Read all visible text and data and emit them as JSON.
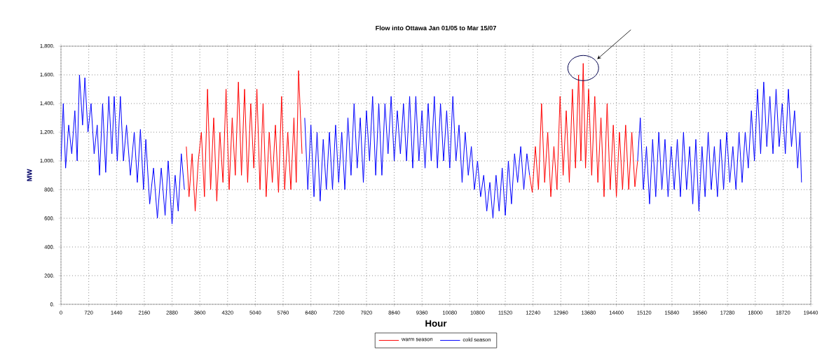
{
  "chart_data": {
    "type": "line",
    "title": "Flow into Ottawa Jan 01/05 to Mar 15/07",
    "xlabel": "Hour",
    "ylabel": "MW",
    "xlim": [
      0,
      19440
    ],
    "ylim": [
      0,
      1800
    ],
    "xticks": [
      0,
      720,
      1440,
      2160,
      2880,
      3600,
      4320,
      5040,
      5760,
      6480,
      7200,
      7920,
      8640,
      9360,
      10080,
      10800,
      11520,
      12240,
      12960,
      13680,
      14400,
      15120,
      15840,
      16560,
      17280,
      18000,
      18720,
      19440
    ],
    "yticks": [
      {
        "value": 0,
        "label": "0."
      },
      {
        "value": 200,
        "label": "200."
      },
      {
        "value": 400,
        "label": "400."
      },
      {
        "value": 600,
        "label": "600."
      },
      {
        "value": 800,
        "label": "800."
      },
      {
        "value": 1000,
        "label": "1,000."
      },
      {
        "value": 1200,
        "label": "1,200."
      },
      {
        "value": 1400,
        "label": "1,400."
      },
      {
        "value": 1600,
        "label": "1,600."
      },
      {
        "value": 1800,
        "label": "1,800."
      }
    ],
    "grid": true,
    "legend": "bottom",
    "marker": "none",
    "line_style": "solid",
    "series": [
      {
        "name": "warm season",
        "color": "#ff0000",
        "x": [
          3250,
          3320,
          3400,
          3480,
          3560,
          3640,
          3720,
          3800,
          3880,
          3960,
          4040,
          4120,
          4200,
          4280,
          4360,
          4440,
          4520,
          4600,
          4680,
          4760,
          4840,
          4920,
          5000,
          5080,
          5160,
          5240,
          5320,
          5400,
          5480,
          5560,
          5640,
          5720,
          5800,
          5880,
          5960,
          6040,
          6100,
          6160,
          6250,
          6300,
          12150,
          12220,
          12300,
          12380,
          12460,
          12540,
          12620,
          12700,
          12780,
          12860,
          12940,
          13020,
          13100,
          13180,
          13260,
          13340,
          13420,
          13480,
          13540,
          13600,
          13680,
          13760,
          13840,
          13920,
          14000,
          14080,
          14160,
          14240,
          14320,
          14400,
          14480,
          14560,
          14640,
          14720,
          14800,
          14880,
          14950
        ],
        "values": [
          1100,
          750,
          1050,
          650,
          1000,
          1200,
          750,
          1500,
          800,
          1300,
          720,
          1200,
          850,
          1500,
          800,
          1300,
          900,
          1550,
          900,
          1500,
          850,
          1400,
          950,
          1500,
          800,
          1400,
          750,
          1200,
          850,
          1250,
          780,
          1450,
          800,
          1200,
          800,
          1300,
          850,
          1630,
          1050,
          null,
          900,
          780,
          1100,
          800,
          1400,
          850,
          1200,
          750,
          1100,
          800,
          1450,
          900,
          1350,
          850,
          1500,
          950,
          1600,
          1000,
          1680,
          950,
          1500,
          900,
          1450,
          850,
          1300,
          750,
          1400,
          800,
          1250,
          750,
          1200,
          800,
          1250,
          800,
          1200,
          820,
          1000
        ]
      },
      {
        "name": "cold season",
        "color": "#0000ff",
        "x": [
          0,
          60,
          120,
          200,
          280,
          360,
          420,
          480,
          560,
          620,
          700,
          780,
          860,
          940,
          1000,
          1080,
          1160,
          1240,
          1320,
          1380,
          1460,
          1540,
          1620,
          1700,
          1800,
          1900,
          1980,
          2060,
          2140,
          2200,
          2300,
          2400,
          2500,
          2600,
          2700,
          2780,
          2880,
          2960,
          3040,
          3120,
          3200,
          3300,
          6320,
          6400,
          6480,
          6560,
          6640,
          6720,
          6800,
          6880,
          6960,
          7040,
          7120,
          7200,
          7280,
          7360,
          7440,
          7520,
          7600,
          7680,
          7760,
          7840,
          7920,
          8000,
          8080,
          8160,
          8240,
          8320,
          8400,
          8480,
          8560,
          8640,
          8720,
          8800,
          8880,
          8960,
          9040,
          9120,
          9200,
          9280,
          9360,
          9440,
          9520,
          9600,
          9680,
          9760,
          9840,
          9920,
          10000,
          10080,
          10160,
          10240,
          10320,
          10400,
          10480,
          10560,
          10640,
          10720,
          10800,
          10880,
          10960,
          11040,
          11120,
          11200,
          11280,
          11360,
          11440,
          11520,
          11600,
          11680,
          11760,
          11840,
          11920,
          12000,
          12080,
          12150,
          12200,
          14950,
          15020,
          15100,
          15180,
          15260,
          15340,
          15420,
          15500,
          15580,
          15660,
          15740,
          15820,
          15900,
          15980,
          16060,
          16140,
          16220,
          16300,
          16380,
          16460,
          16540,
          16620,
          16700,
          16780,
          16860,
          16940,
          17020,
          17100,
          17180,
          17260,
          17340,
          17420,
          17500,
          17580,
          17660,
          17740,
          17820,
          17900,
          17980,
          18060,
          18140,
          18220,
          18300,
          18380,
          18460,
          18540,
          18620,
          18700,
          18780,
          18860,
          18940,
          19020,
          19100,
          19160,
          19200
        ],
        "values": [
          1000,
          1400,
          950,
          1250,
          1050,
          1350,
          1000,
          1600,
          1250,
          1580,
          1200,
          1400,
          1050,
          1250,
          900,
          1400,
          920,
          1450,
          1050,
          1450,
          1000,
          1450,
          1000,
          1250,
          900,
          1200,
          850,
          1220,
          800,
          1150,
          700,
          950,
          600,
          950,
          620,
          1000,
          560,
          900,
          650,
          1050,
          800,
          null,
          1300,
          800,
          1250,
          750,
          1200,
          720,
          1150,
          800,
          1200,
          800,
          1250,
          850,
          1200,
          800,
          1300,
          900,
          1400,
          950,
          1300,
          850,
          1350,
          1000,
          1450,
          900,
          1400,
          900,
          1400,
          1050,
          1450,
          1000,
          1350,
          1050,
          1400,
          1000,
          1450,
          950,
          1450,
          1000,
          1350,
          950,
          1400,
          1000,
          1450,
          950,
          1400,
          1000,
          1350,
          950,
          1450,
          1000,
          1250,
          850,
          1200,
          900,
          1100,
          800,
          1000,
          750,
          900,
          650,
          850,
          600,
          900,
          650,
          950,
          620,
          1000,
          700,
          1050,
          850,
          1100,
          800,
          1050,
          900,
          null,
          1000,
          1300,
          800,
          1100,
          700,
          1150,
          750,
          1200,
          800,
          1150,
          750,
          1100,
          800,
          1150,
          750,
          1200,
          800,
          1100,
          700,
          1150,
          650,
          1100,
          750,
          1200,
          800,
          1100,
          750,
          1150,
          800,
          1200,
          850,
          1100,
          800,
          1200,
          850,
          1200,
          950,
          1350,
          1000,
          1500,
          1050,
          1550,
          1100,
          1450,
          1050,
          1500,
          1100,
          1400,
          1050,
          1500,
          1100,
          1350,
          950,
          1200,
          850
        ]
      }
    ]
  }
}
